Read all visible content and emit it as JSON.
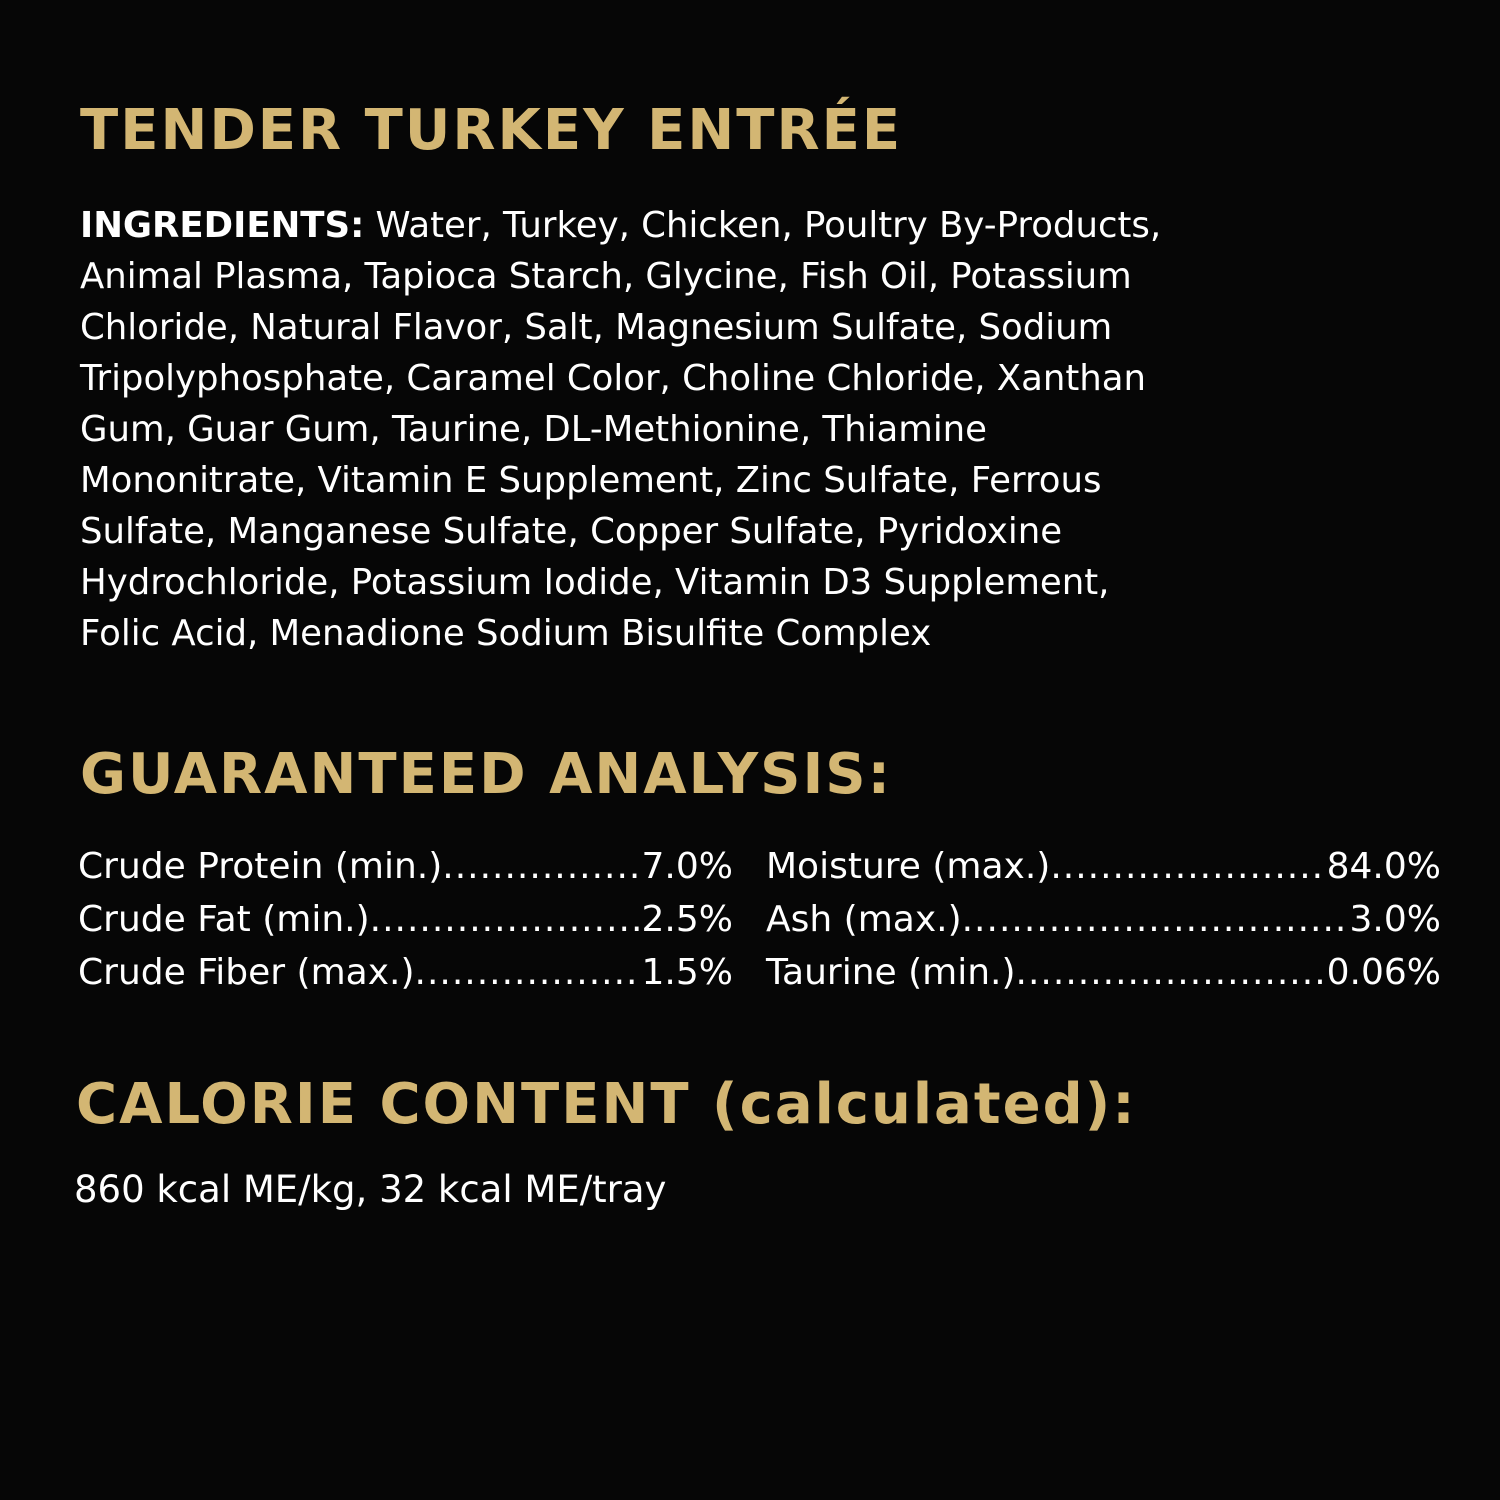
{
  "colors": {
    "background": "#060606",
    "heading": "#d3b673",
    "text": "#ffffff"
  },
  "title": "TENDER TURKEY ENTRÉE",
  "ingredients": {
    "label": "INGREDIENTS:",
    "lines": [
      " Water, Turkey, Chicken, Poultry By-Products,",
      "Animal Plasma, Tapioca Starch, Glycine, Fish Oil, Potassium",
      "Chloride, Natural Flavor, Salt, Magnesium Sulfate, Sodium",
      "Tripolyphosphate, Caramel Color, Choline Chloride, Xanthan",
      "Gum, Guar Gum, Taurine, DL-Methionine, Thiamine",
      "Mononitrate, Vitamin E Supplement, Zinc Sulfate, Ferrous",
      "Sulfate, Manganese Sulfate, Copper Sulfate, Pyridoxine",
      "Hydrochloride, Potassium Iodide, Vitamin D3 Supplement,",
      "Folic Acid, Menadione Sodium Bisulfite Complex"
    ]
  },
  "guaranteed_analysis": {
    "title": "GUARANTEED ANALYSIS:",
    "left": [
      {
        "label": "Crude Protein (min.)",
        "value": "7.0%"
      },
      {
        "label": "Crude Fat (min.)",
        "value": "2.5%"
      },
      {
        "label": "Crude Fiber (max.)",
        "value": "1.5%"
      }
    ],
    "right": [
      {
        "label": "Moisture (max.)",
        "value": "84.0%"
      },
      {
        "label": "Ash (max.)",
        "value": "3.0%"
      },
      {
        "label": "Taurine (min.)",
        "value": "0.06%"
      }
    ]
  },
  "calorie": {
    "title": "CALORIE CONTENT (calculated):",
    "text": "860 kcal ME/kg, 32 kcal ME/tray"
  }
}
